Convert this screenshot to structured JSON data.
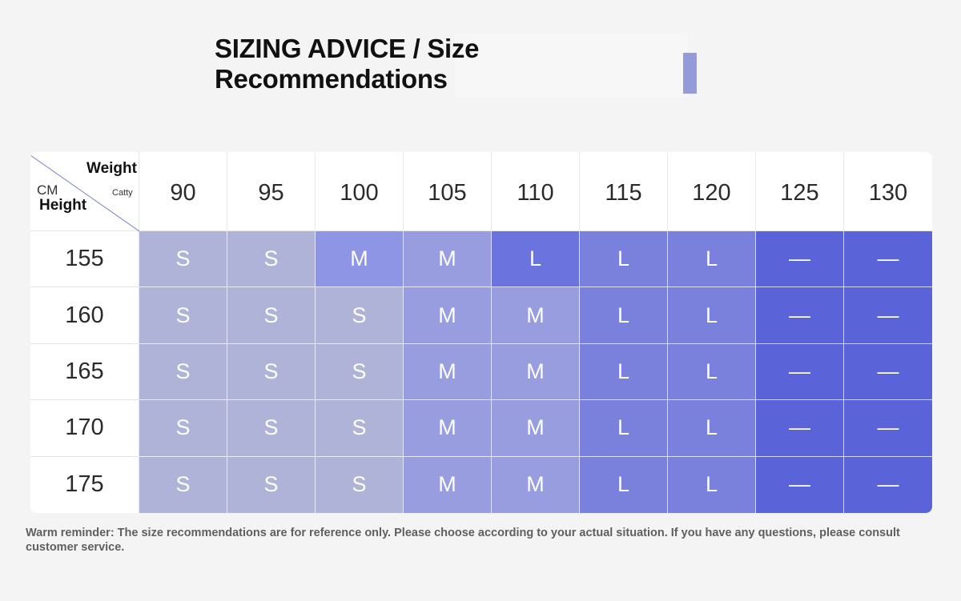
{
  "title": "SIZING ADVICE / Size Recommendations",
  "colors": {
    "accent": "#949bd9",
    "S": "#afb3d7",
    "M": "#979dde",
    "L": "#7981dc",
    "none": "#5a64d8",
    "M_highlight": "#8d95e4",
    "L_highlight": "#6b74de"
  },
  "table": {
    "corner": {
      "weight_label": "Weight",
      "unit_weight": "Catty",
      "unit_height": "CM",
      "height_label": "Height"
    },
    "weights": [
      "90",
      "95",
      "100",
      "105",
      "110",
      "115",
      "120",
      "125",
      "130"
    ],
    "rows": [
      {
        "height": "155",
        "sizes": [
          "S",
          "S",
          "M",
          "M",
          "L",
          "L",
          "L",
          "—",
          "—"
        ]
      },
      {
        "height": "160",
        "sizes": [
          "S",
          "S",
          "S",
          "M",
          "M",
          "L",
          "L",
          "—",
          "—"
        ]
      },
      {
        "height": "165",
        "sizes": [
          "S",
          "S",
          "S",
          "M",
          "M",
          "L",
          "L",
          "—",
          "—"
        ]
      },
      {
        "height": "170",
        "sizes": [
          "S",
          "S",
          "S",
          "M",
          "M",
          "L",
          "L",
          "—",
          "—"
        ]
      },
      {
        "height": "175",
        "sizes": [
          "S",
          "S",
          "S",
          "M",
          "M",
          "L",
          "L",
          "—",
          "—"
        ]
      }
    ]
  },
  "reminder": "Warm reminder: The size recommendations are for reference only. Please choose according to your actual situation. If you have any questions, please consult customer service."
}
